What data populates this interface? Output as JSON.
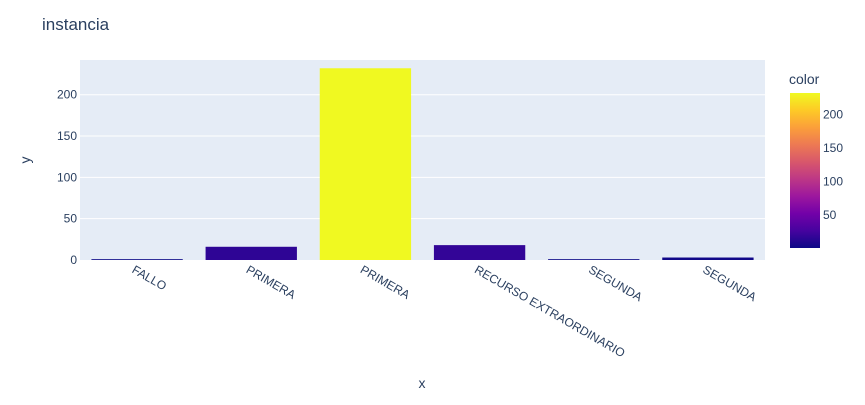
{
  "chart_data": {
    "type": "bar",
    "title": "instancia",
    "xlabel": "x",
    "ylabel": "y",
    "categories": [
      "FALLO",
      "PRIMERA",
      "PRIMERA",
      "RECURSO EXTRAORDINARIO",
      "SEGUNDA",
      "SEGUNDA"
    ],
    "values": [
      1,
      16,
      232,
      18,
      1,
      3
    ],
    "ylim": [
      0,
      242
    ],
    "yticks": [
      0,
      50,
      100,
      150,
      200
    ],
    "grid": true,
    "colorbar": {
      "title": "color",
      "range": [
        1,
        232
      ],
      "ticks": [
        50,
        100,
        150,
        200
      ],
      "colorscale": [
        "#0d0887",
        "#46039f",
        "#7201a8",
        "#9c179e",
        "#bd3786",
        "#d8576b",
        "#ed7953",
        "#fb9f3a",
        "#fdca26",
        "#f0f921"
      ]
    },
    "colors": {
      "plot_bg": "#e5ecf6",
      "gridline": "#ffffff",
      "text": "#2a3f5f"
    }
  }
}
